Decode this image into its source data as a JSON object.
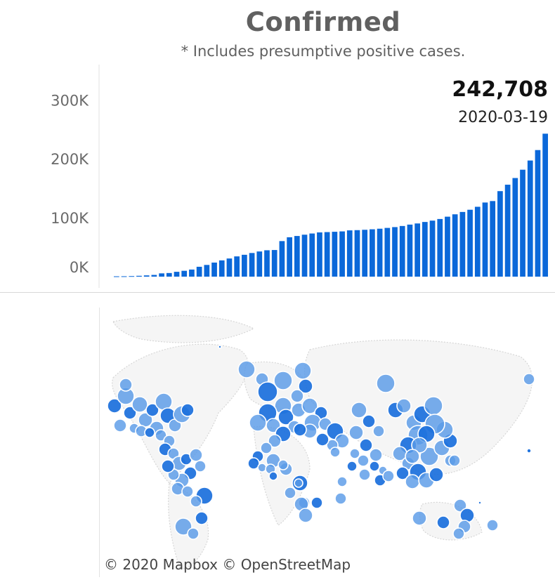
{
  "header": {
    "title": "Confirmed",
    "subtitle": "* Includes presumptive positive cases."
  },
  "latest": {
    "value": "242,708",
    "date": "2020-03-19"
  },
  "chart_data": {
    "type": "bar",
    "title": "Confirmed",
    "subtitle": "* Includes presumptive positive cases.",
    "xlabel": "",
    "ylabel": "",
    "ylim": [
      0,
      360000
    ],
    "yticks": [
      0,
      100000,
      200000,
      300000
    ],
    "ytick_labels": [
      "0K",
      "100K",
      "200K",
      "300K"
    ],
    "grid": false,
    "bar_color": "#0b68d9",
    "x_start": "2020-01-22",
    "x_end": "2020-03-19",
    "values": [
      555,
      654,
      941,
      1434,
      2118,
      2927,
      5578,
      6166,
      8234,
      9927,
      12038,
      16787,
      19881,
      23892,
      27635,
      30817,
      34391,
      37120,
      40150,
      42762,
      44802,
      45221,
      60368,
      66885,
      69030,
      71224,
      73258,
      75136,
      75639,
      76197,
      76823,
      78579,
      78965,
      79568,
      80413,
      81395,
      82754,
      84120,
      86011,
      88369,
      90306,
      92840,
      95120,
      97886,
      101801,
      105847,
      109821,
      113590,
      118620,
      125865,
      128343,
      145193,
      156097,
      167449,
      181546,
      197168,
      214915,
      242708
    ]
  },
  "map": {
    "credit": "© 2020 Mapbox  © OpenStreetMap",
    "bubble_fill": "#5a9be8",
    "bubble_fill_dark": "#1a6fdc",
    "bubble_stroke": "#ffffff"
  }
}
